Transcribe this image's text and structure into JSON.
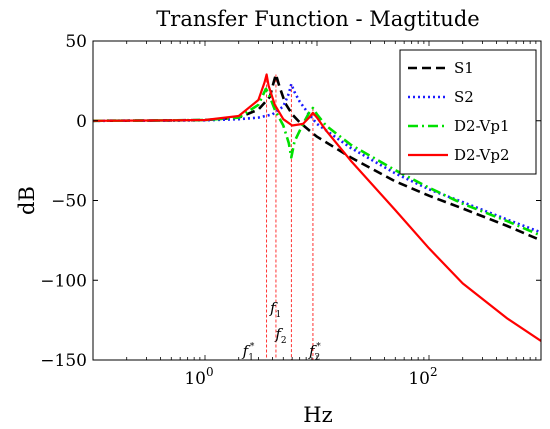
{
  "chart_data": {
    "type": "line",
    "title": "Transfer Function - Magtitude",
    "xlabel": "Hz",
    "ylabel": "dB",
    "xscale": "log",
    "xlim": [
      0.1,
      1000
    ],
    "ylim": [
      -150,
      50
    ],
    "xticks": [
      {
        "value": 1,
        "base": "10",
        "exp": "0"
      },
      {
        "value": 100,
        "base": "10",
        "exp": "2"
      }
    ],
    "yticks": [
      50,
      0,
      -50,
      -100,
      -150
    ],
    "ytick_labels": [
      "50",
      "0",
      "−50",
      "−100",
      "−150"
    ],
    "legend_position": "top-right",
    "series": [
      {
        "name": "S1",
        "color": "#000000",
        "style": "dash",
        "points": [
          [
            0.1,
            0
          ],
          [
            0.5,
            0.2
          ],
          [
            1,
            0.5
          ],
          [
            2,
            2
          ],
          [
            3,
            7
          ],
          [
            3.8,
            15
          ],
          [
            4.1,
            24
          ],
          [
            4.3,
            29
          ],
          [
            4.6,
            22
          ],
          [
            5.2,
            11
          ],
          [
            6,
            4
          ],
          [
            7,
            -1
          ],
          [
            8.5,
            -6
          ],
          [
            10,
            -10
          ],
          [
            20,
            -23
          ],
          [
            50,
            -38
          ],
          [
            100,
            -47
          ],
          [
            200,
            -55
          ],
          [
            500,
            -66
          ],
          [
            1000,
            -75
          ]
        ]
      },
      {
        "name": "S2",
        "color": "#1c1cff",
        "style": "dot",
        "points": [
          [
            0.1,
            0
          ],
          [
            0.5,
            0.1
          ],
          [
            1,
            0.3
          ],
          [
            2,
            1
          ],
          [
            3,
            2
          ],
          [
            4,
            4
          ],
          [
            5,
            9
          ],
          [
            5.6,
            17
          ],
          [
            5.9,
            23
          ],
          [
            6.3,
            18
          ],
          [
            7,
            12
          ],
          [
            8.5,
            4
          ],
          [
            10,
            -2
          ],
          [
            20,
            -17
          ],
          [
            50,
            -33
          ],
          [
            100,
            -43
          ],
          [
            200,
            -51
          ],
          [
            500,
            -62
          ],
          [
            1000,
            -70
          ]
        ]
      },
      {
        "name": "D2-Vp1",
        "color": "#00e000",
        "style": "dashdot",
        "points": [
          [
            0.1,
            0
          ],
          [
            0.5,
            0.2
          ],
          [
            1,
            0.5
          ],
          [
            2,
            2
          ],
          [
            3,
            10
          ],
          [
            3.5,
            20
          ],
          [
            3.7,
            17
          ],
          [
            4.2,
            7
          ],
          [
            5,
            -3
          ],
          [
            5.6,
            -14
          ],
          [
            5.9,
            -23
          ],
          [
            6.3,
            -13
          ],
          [
            7.5,
            -2
          ],
          [
            8.5,
            5
          ],
          [
            9.2,
            8
          ],
          [
            10,
            4
          ],
          [
            12,
            -3
          ],
          [
            20,
            -15
          ],
          [
            50,
            -31
          ],
          [
            100,
            -42
          ],
          [
            200,
            -52
          ],
          [
            500,
            -63
          ],
          [
            1000,
            -72
          ]
        ]
      },
      {
        "name": "D2-Vp2",
        "color": "#ff0000",
        "style": "solid",
        "points": [
          [
            0.1,
            0
          ],
          [
            0.5,
            0.2
          ],
          [
            1,
            0.5
          ],
          [
            2,
            3
          ],
          [
            3,
            13
          ],
          [
            3.4,
            24
          ],
          [
            3.55,
            29
          ],
          [
            3.7,
            22
          ],
          [
            4.2,
            10
          ],
          [
            5,
            1
          ],
          [
            6,
            -3
          ],
          [
            7.5,
            -2
          ],
          [
            8.5,
            2
          ],
          [
            9.2,
            5
          ],
          [
            10,
            2
          ],
          [
            12,
            -6
          ],
          [
            20,
            -25
          ],
          [
            50,
            -56
          ],
          [
            100,
            -80
          ],
          [
            200,
            -102
          ],
          [
            500,
            -124
          ],
          [
            1000,
            -138
          ]
        ]
      }
    ],
    "markers": [
      {
        "x": 3.55,
        "y": 29,
        "main": "f",
        "sub": "1",
        "sup": "*"
      },
      {
        "x": 4.3,
        "y": 29,
        "main": "f",
        "sub": "1",
        "sup": ""
      },
      {
        "x": 5.9,
        "y": 23,
        "main": "f",
        "sub": "2",
        "sup": ""
      },
      {
        "x": 9.2,
        "y": 8,
        "main": "f",
        "sub": "2",
        "sup": "*"
      }
    ]
  }
}
